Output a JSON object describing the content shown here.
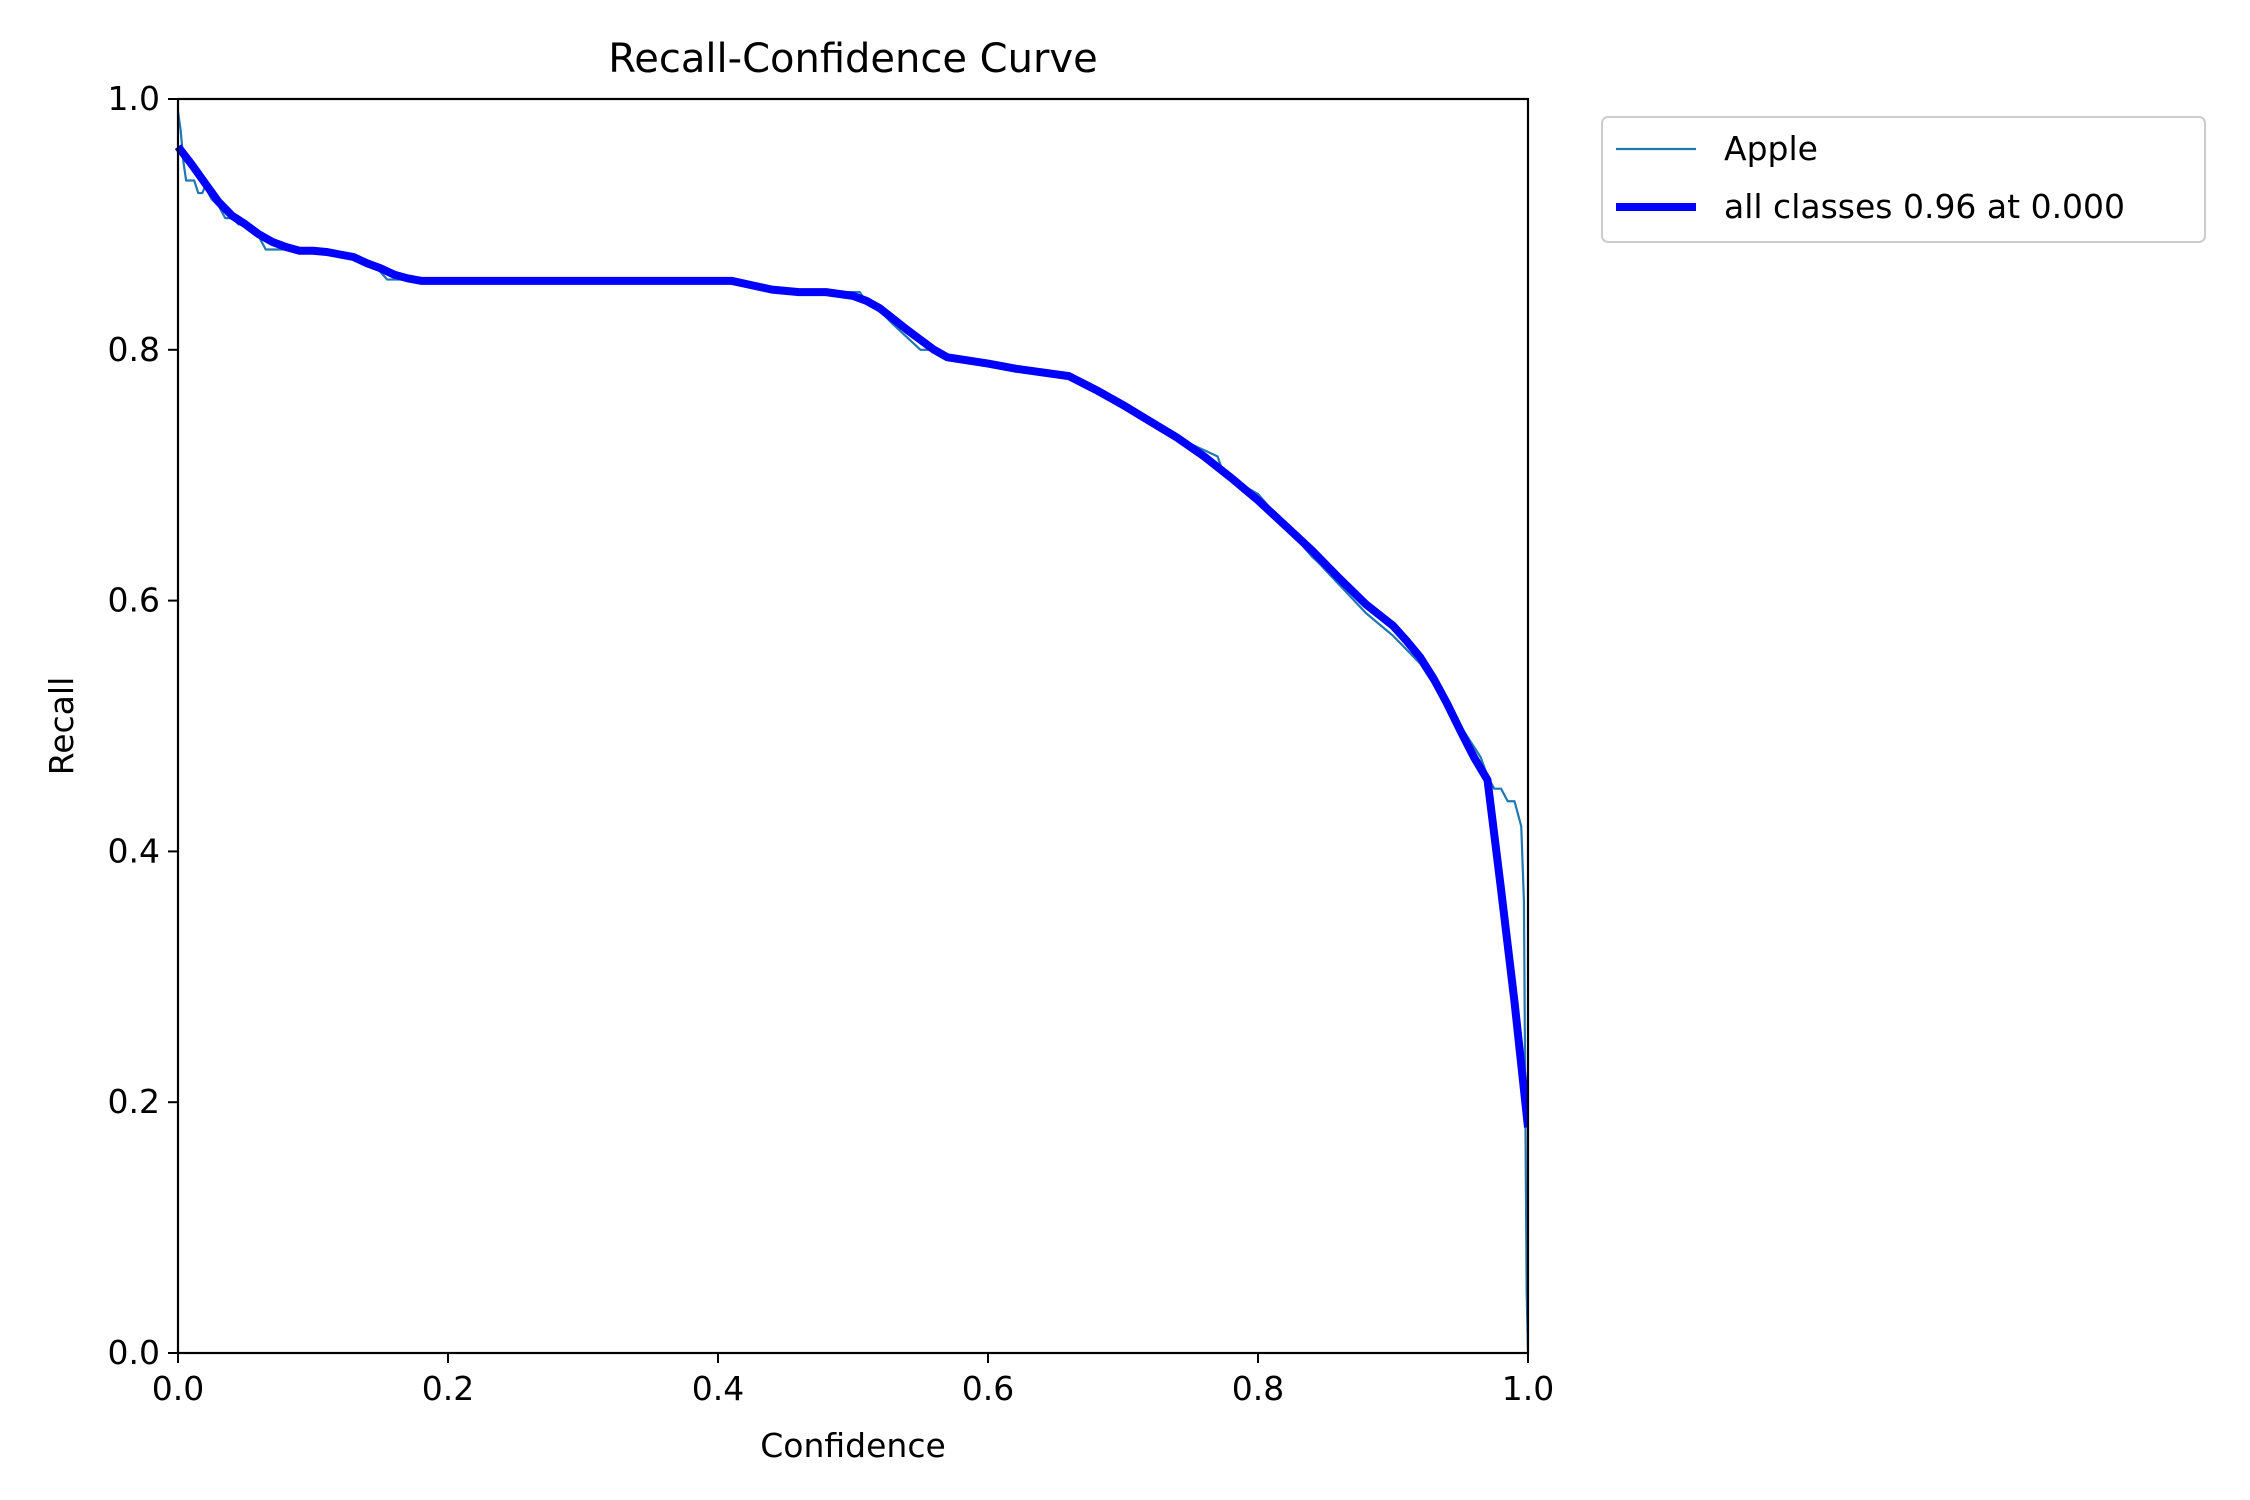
{
  "chart_data": {
    "type": "line",
    "title": "Recall-Confidence Curve",
    "xlabel": "Confidence",
    "ylabel": "Recall",
    "xlim": [
      0,
      1
    ],
    "ylim": [
      0,
      1
    ],
    "xticks": [
      "0.0",
      "0.2",
      "0.4",
      "0.6",
      "0.8",
      "1.0"
    ],
    "yticks": [
      "0.0",
      "0.2",
      "0.4",
      "0.6",
      "0.8",
      "1.0"
    ],
    "grid": false,
    "legend_position": "outside-top-right",
    "series": [
      {
        "name": "Apple",
        "color": "#1f77b4",
        "x": [
          0.0,
          0.002,
          0.004,
          0.006,
          0.008,
          0.01,
          0.012,
          0.015,
          0.018,
          0.02,
          0.025,
          0.03,
          0.035,
          0.04,
          0.045,
          0.05,
          0.06,
          0.065,
          0.07,
          0.08,
          0.09,
          0.1,
          0.11,
          0.12,
          0.13,
          0.14,
          0.145,
          0.15,
          0.155,
          0.16,
          0.17,
          0.18,
          0.2,
          0.25,
          0.3,
          0.35,
          0.4,
          0.42,
          0.45,
          0.46,
          0.48,
          0.5,
          0.505,
          0.51,
          0.52,
          0.53,
          0.54,
          0.545,
          0.55,
          0.56,
          0.57,
          0.6,
          0.65,
          0.66,
          0.7,
          0.74,
          0.745,
          0.75,
          0.77,
          0.775,
          0.8,
          0.82,
          0.84,
          0.845,
          0.88,
          0.9,
          0.92,
          0.95,
          0.965,
          0.97,
          0.975,
          0.98,
          0.985,
          0.99,
          0.995,
          0.997,
          0.998,
          0.999,
          1.0
        ],
        "y": [
          0.99,
          0.975,
          0.95,
          0.935,
          0.935,
          0.935,
          0.935,
          0.925,
          0.925,
          0.93,
          0.92,
          0.915,
          0.905,
          0.905,
          0.9,
          0.9,
          0.89,
          0.88,
          0.88,
          0.88,
          0.878,
          0.878,
          0.877,
          0.876,
          0.873,
          0.868,
          0.868,
          0.862,
          0.856,
          0.856,
          0.856,
          0.855,
          0.855,
          0.855,
          0.855,
          0.855,
          0.855,
          0.852,
          0.848,
          0.846,
          0.846,
          0.846,
          0.846,
          0.838,
          0.831,
          0.82,
          0.81,
          0.805,
          0.8,
          0.8,
          0.795,
          0.789,
          0.78,
          0.778,
          0.755,
          0.73,
          0.725,
          0.725,
          0.715,
          0.7,
          0.685,
          0.66,
          0.635,
          0.63,
          0.59,
          0.572,
          0.55,
          0.5,
          0.475,
          0.46,
          0.45,
          0.45,
          0.44,
          0.44,
          0.42,
          0.36,
          0.2,
          0.05,
          0.0
        ]
      },
      {
        "name": "all classes 0.96 at 0.000",
        "color": "#0000ff",
        "x": [
          0.0,
          0.01,
          0.02,
          0.03,
          0.04,
          0.05,
          0.06,
          0.07,
          0.08,
          0.09,
          0.1,
          0.11,
          0.12,
          0.13,
          0.14,
          0.15,
          0.16,
          0.17,
          0.18,
          0.2,
          0.3,
          0.4,
          0.41,
          0.44,
          0.46,
          0.48,
          0.5,
          0.51,
          0.52,
          0.54,
          0.56,
          0.57,
          0.6,
          0.62,
          0.66,
          0.68,
          0.7,
          0.72,
          0.74,
          0.76,
          0.78,
          0.8,
          0.82,
          0.84,
          0.86,
          0.88,
          0.9,
          0.91,
          0.92,
          0.93,
          0.94,
          0.95,
          0.96,
          0.97,
          0.98,
          0.99,
          1.0
        ],
        "y": [
          0.962,
          0.948,
          0.933,
          0.918,
          0.907,
          0.9,
          0.892,
          0.886,
          0.882,
          0.879,
          0.879,
          0.878,
          0.876,
          0.874,
          0.869,
          0.865,
          0.86,
          0.857,
          0.855,
          0.855,
          0.855,
          0.855,
          0.855,
          0.848,
          0.846,
          0.846,
          0.843,
          0.839,
          0.833,
          0.816,
          0.8,
          0.794,
          0.789,
          0.785,
          0.779,
          0.768,
          0.756,
          0.743,
          0.73,
          0.715,
          0.698,
          0.68,
          0.66,
          0.64,
          0.618,
          0.597,
          0.58,
          0.568,
          0.555,
          0.538,
          0.518,
          0.496,
          0.475,
          0.457,
          0.37,
          0.28,
          0.18
        ]
      }
    ]
  }
}
